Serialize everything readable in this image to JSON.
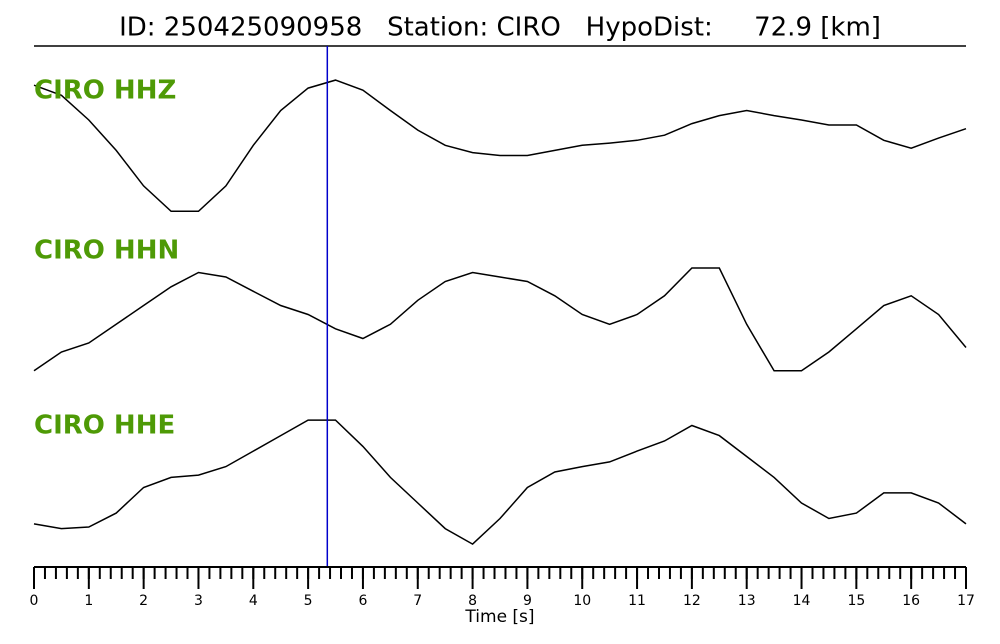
{
  "chart_data": {
    "type": "line",
    "title": "ID: 250425090958   Station: CIRO   HypoDist:     72.9 [km]",
    "x_label": "Time [s]",
    "xlim": [
      0,
      17
    ],
    "xticks": [
      0,
      1,
      2,
      3,
      4,
      5,
      6,
      7,
      8,
      9,
      10,
      11,
      12,
      13,
      14,
      15,
      16,
      17
    ],
    "minor_tick_step": 0.2,
    "ylim": [
      -1,
      1
    ],
    "label_color": "#4e9a06",
    "pick_time": 5.35,
    "pick_color": "#0000cc",
    "x": [
      0,
      0.5,
      1,
      1.5,
      2,
      2.5,
      3,
      3.5,
      4,
      4.5,
      5,
      5.5,
      6,
      6.5,
      7,
      7.5,
      8,
      8.5,
      9,
      9.5,
      10,
      10.5,
      11,
      11.5,
      12,
      12.5,
      13,
      13.5,
      14,
      14.5,
      15,
      15.5,
      16,
      16.5,
      17
    ],
    "series": [
      {
        "name": "CIRO HHZ",
        "color": "#000000",
        "values": [
          0.86,
          0.72,
          0.38,
          -0.04,
          -0.53,
          -0.88,
          -0.88,
          -0.53,
          0.03,
          0.51,
          0.82,
          0.93,
          0.79,
          0.51,
          0.24,
          0.03,
          -0.07,
          -0.11,
          -0.11,
          -0.04,
          0.03,
          0.06,
          0.1,
          0.17,
          0.33,
          0.44,
          0.51,
          0.44,
          0.38,
          0.31,
          0.31,
          0.1,
          -0.01,
          0.13,
          0.26
        ]
      },
      {
        "name": "CIRO HHN",
        "color": "#000000",
        "values": [
          -0.81,
          -0.56,
          -0.44,
          -0.19,
          0.06,
          0.31,
          0.5,
          0.44,
          0.25,
          0.06,
          -0.06,
          -0.25,
          -0.38,
          -0.19,
          0.13,
          0.38,
          0.5,
          0.44,
          0.38,
          0.19,
          -0.06,
          -0.19,
          -0.06,
          0.19,
          0.56,
          0.56,
          -0.19,
          -0.81,
          -0.81,
          -0.56,
          -0.25,
          0.06,
          0.19,
          -0.06,
          -0.5
        ]
      },
      {
        "name": "CIRO HHE",
        "color": "#000000",
        "values": [
          -0.47,
          -0.53,
          -0.51,
          -0.33,
          0,
          0.13,
          0.16,
          0.27,
          0.47,
          0.67,
          0.87,
          0.87,
          0.53,
          0.13,
          -0.2,
          -0.53,
          -0.73,
          -0.4,
          0,
          0.2,
          0.27,
          0.33,
          0.47,
          0.6,
          0.8,
          0.67,
          0.4,
          0.13,
          -0.2,
          -0.4,
          -0.33,
          -0.07,
          -0.07,
          -0.2,
          -0.47
        ]
      }
    ]
  }
}
